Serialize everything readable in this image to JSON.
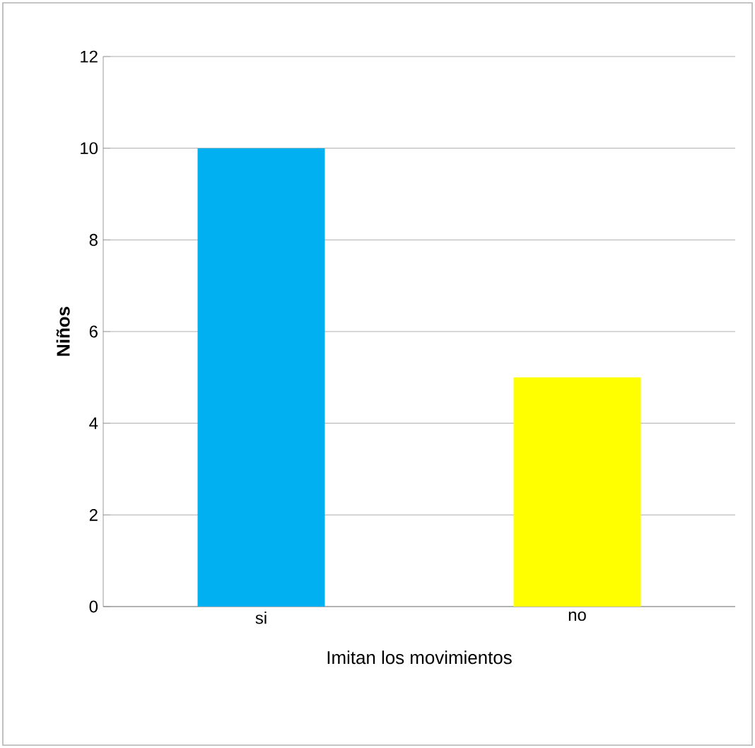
{
  "chart_data": {
    "type": "bar",
    "xlabel": "Imitan los movimientos",
    "ylabel": "Niños",
    "categories": [
      "si",
      "no"
    ],
    "values": [
      10,
      5
    ],
    "colors": [
      "#00b0f0",
      "#ffff00"
    ],
    "ylim": [
      0,
      12
    ],
    "yticks": [
      0,
      2,
      4,
      6,
      8,
      10,
      12
    ],
    "grid": "y"
  }
}
